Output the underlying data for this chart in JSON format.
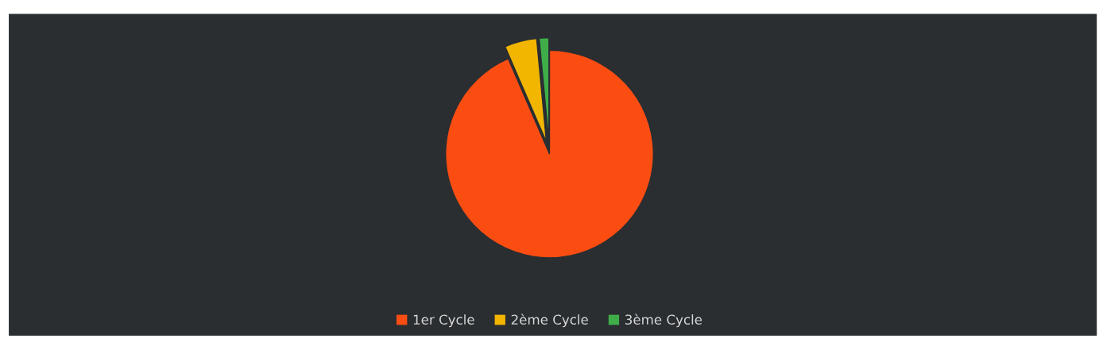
{
  "chart_data": {
    "type": "pie",
    "categories": [
      "1er Cycle",
      "2ème Cycle",
      "3ème Cycle"
    ],
    "values": [
      93.5,
      5,
      1.5
    ],
    "colors": [
      "#fb4d12",
      "#f2b600",
      "#3fae49"
    ],
    "legend": "bottom"
  }
}
